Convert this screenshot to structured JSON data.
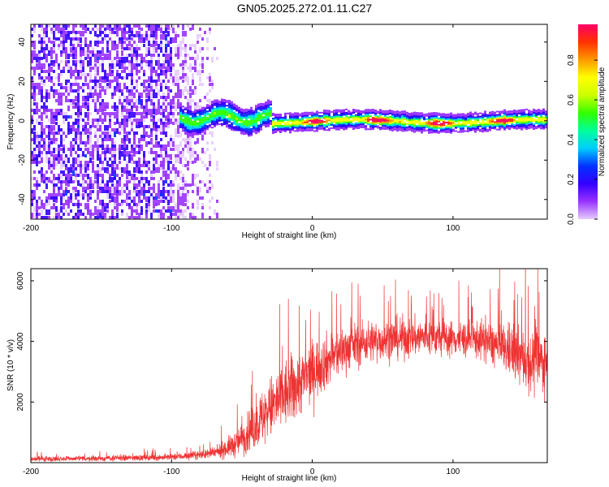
{
  "title": "GN05.2025.272.01.11.C27",
  "chart_data": [
    {
      "type": "heatmap",
      "name": "spectrogram",
      "xlabel": "Height of straight line (km)",
      "ylabel": "Frequency (Hz)",
      "xlim": [
        -200,
        167
      ],
      "ylim": [
        -50,
        49
      ],
      "xticks": [
        -200,
        -100,
        0,
        100
      ],
      "yticks": [
        -40,
        -20,
        0,
        20,
        40
      ],
      "colorbar": {
        "label": "Normalized spectral amplitude",
        "range": [
          0,
          0.98
        ],
        "ticks": [
          "0.0",
          "0.2",
          "0.4",
          "0.6",
          "0.8"
        ],
        "colors": [
          "#e6ccff",
          "#9933ff",
          "#3300ff",
          "#0033ff",
          "#00ccff",
          "#00ff99",
          "#33ff00",
          "#ccff00",
          "#ffff00",
          "#ff9900",
          "#ff3300",
          "#ff0066"
        ]
      },
      "features": {
        "noise_region_x": [
          -200,
          -65
        ],
        "noise_dense_until": -100,
        "carrier_start_x": -95,
        "carrier_freq_hz": 0,
        "carrier_peak_amplitude": 0.95
      }
    },
    {
      "type": "line",
      "name": "snr",
      "xlabel": "Height of straight line (km)",
      "ylabel": "SNR (10 * v/v)",
      "xlim": [
        -200,
        167
      ],
      "ylim": [
        0,
        6400
      ],
      "xticks": [
        -200,
        -100,
        0,
        100
      ],
      "yticks": [
        2000,
        4000,
        6000
      ],
      "color": "#ee3333",
      "envelope": {
        "x": [
          -200,
          -150,
          -100,
          -70,
          -55,
          -45,
          -35,
          -25,
          -15,
          -5,
          5,
          15,
          25,
          40,
          60,
          80,
          100,
          120,
          140,
          155,
          167
        ],
        "mean": [
          120,
          140,
          180,
          300,
          600,
          1000,
          1500,
          2000,
          2400,
          2800,
          3200,
          3500,
          3800,
          4000,
          4100,
          4150,
          4100,
          4050,
          3700,
          3300,
          3400
        ],
        "spread": [
          80,
          90,
          100,
          150,
          400,
          600,
          900,
          1100,
          1100,
          1000,
          900,
          800,
          700,
          650,
          650,
          600,
          550,
          600,
          800,
          1000,
          1000
        ]
      }
    }
  ]
}
